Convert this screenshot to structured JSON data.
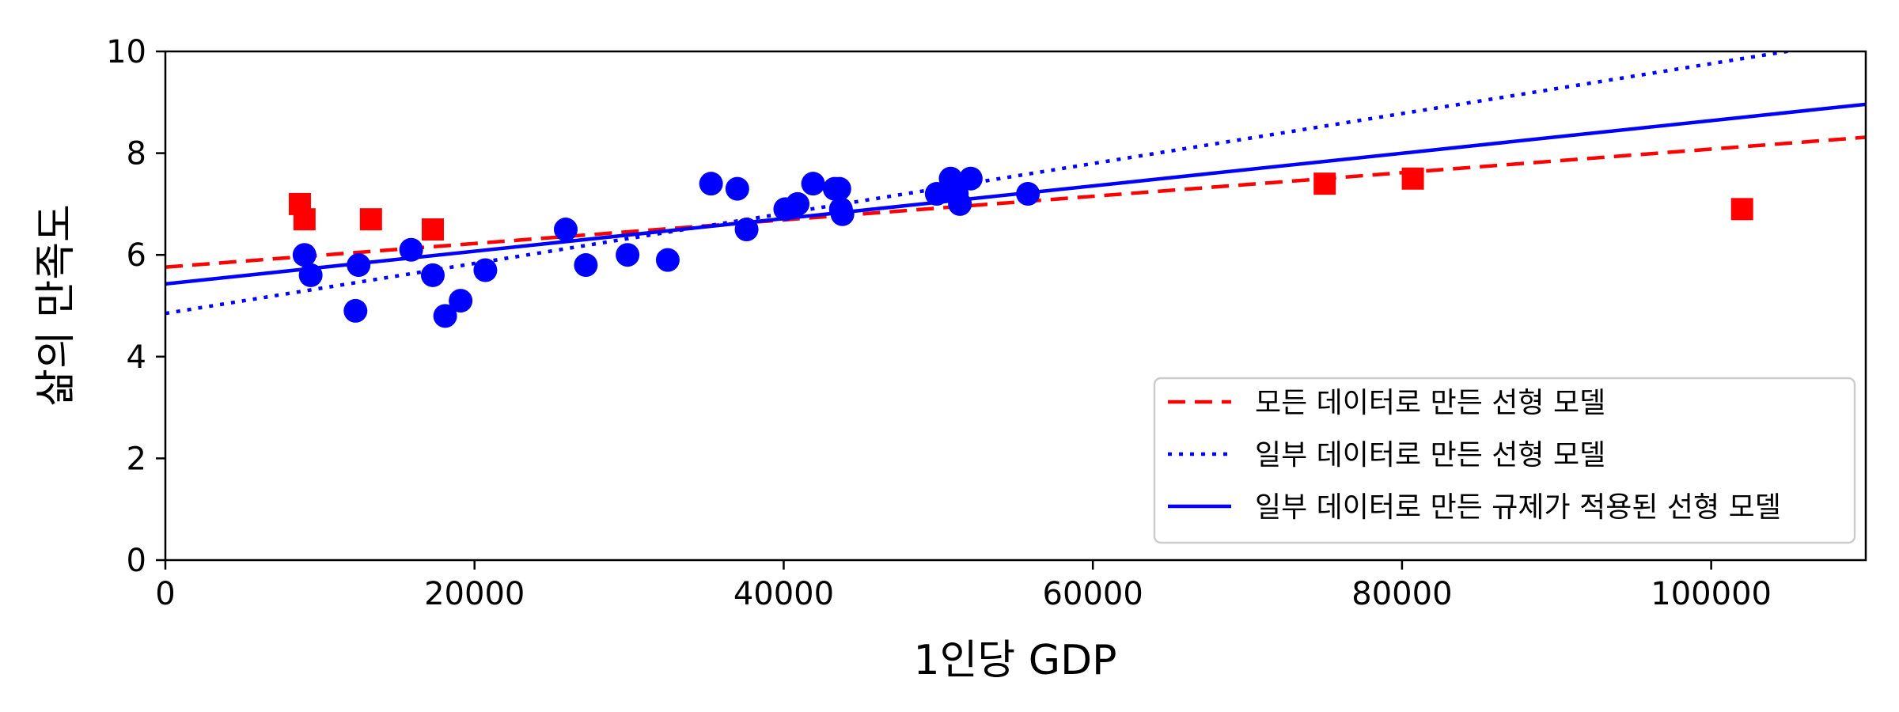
{
  "chart_data": {
    "type": "scatter",
    "title": "",
    "xlabel": "1인당 GDP",
    "ylabel": "삶의 만족도",
    "xlim": [
      0,
      110000
    ],
    "ylim": [
      0,
      10
    ],
    "xticks": [
      0,
      20000,
      40000,
      60000,
      80000,
      100000
    ],
    "yticks": [
      0,
      2,
      4,
      6,
      8,
      10
    ],
    "grid": false,
    "legend_position": "bottom-right",
    "series": [
      {
        "kind": "scatter",
        "marker": "circle",
        "color": "#0000ff",
        "points": [
          [
            9000,
            6.0
          ],
          [
            9400,
            5.6
          ],
          [
            12300,
            4.9
          ],
          [
            12500,
            5.8
          ],
          [
            15900,
            6.1
          ],
          [
            17300,
            5.6
          ],
          [
            18100,
            4.8
          ],
          [
            19100,
            5.1
          ],
          [
            20700,
            5.7
          ],
          [
            25900,
            6.5
          ],
          [
            27200,
            5.8
          ],
          [
            29900,
            6.0
          ],
          [
            32500,
            5.9
          ],
          [
            35300,
            7.4
          ],
          [
            37000,
            7.3
          ],
          [
            37600,
            6.5
          ],
          [
            40100,
            6.9
          ],
          [
            40900,
            7.0
          ],
          [
            41900,
            7.4
          ],
          [
            43300,
            7.3
          ],
          [
            43600,
            7.3
          ],
          [
            43700,
            6.9
          ],
          [
            43800,
            6.8
          ],
          [
            49900,
            7.2
          ],
          [
            50800,
            7.5
          ],
          [
            51000,
            7.3
          ],
          [
            51200,
            7.2
          ],
          [
            51400,
            7.0
          ],
          [
            52100,
            7.5
          ],
          [
            55800,
            7.2
          ]
        ]
      },
      {
        "kind": "scatter",
        "marker": "square",
        "color": "#ff0000",
        "points": [
          [
            8700,
            7.0
          ],
          [
            9000,
            6.7
          ],
          [
            13300,
            6.7
          ],
          [
            17300,
            6.5
          ],
          [
            75000,
            7.4
          ],
          [
            80700,
            7.5
          ],
          [
            102000,
            6.9
          ]
        ]
      },
      {
        "kind": "line",
        "name": "모든 데이터로 만든 선형 모델",
        "style": "dashed",
        "color": "#ff0000",
        "intercept": 5.76,
        "slope": 2.32e-05
      },
      {
        "kind": "line",
        "name": "일부 데이터로 만든 선형 모델",
        "style": "dotted",
        "color": "#0000ff",
        "intercept": 4.85,
        "slope": 4.91e-05
      },
      {
        "kind": "line",
        "name": "일부 데이터로 만든 규제가 적용된 선형 모델",
        "style": "solid",
        "color": "#0000ff",
        "intercept": 5.43,
        "slope": 3.21e-05
      }
    ]
  }
}
